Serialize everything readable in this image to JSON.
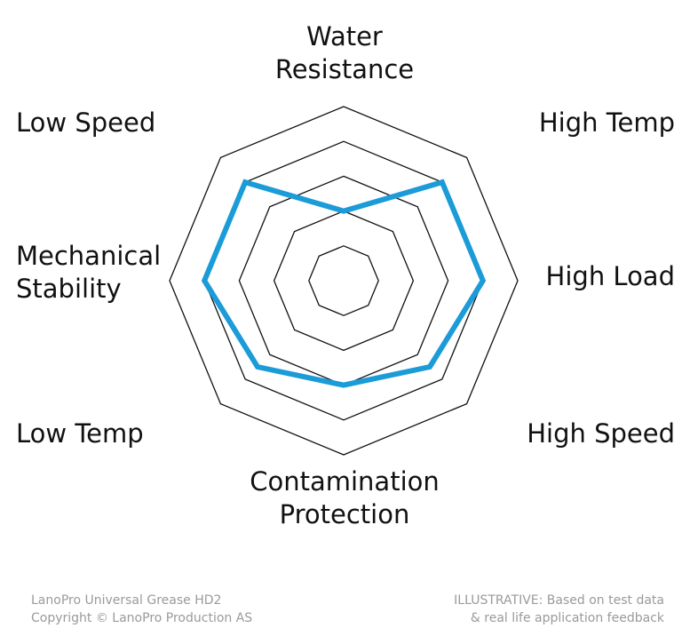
{
  "chart_data": {
    "type": "radar",
    "axes": [
      "Water\nResistance",
      "High Temp",
      "High Load",
      "High Speed",
      "Contamination\nProtection",
      "Low Temp",
      "Mechanical\nStability",
      "Low Speed"
    ],
    "series": [
      {
        "values": [
          2,
          4,
          4,
          3.5,
          3,
          3.5,
          4,
          4
        ],
        "color": "#1b9bd7"
      }
    ],
    "rmax": 5,
    "rings": [
      1,
      2,
      3,
      4,
      5
    ],
    "grid_color": "#111111"
  },
  "footer": {
    "left": "LanoPro Universal Grease HD2\nCopyright © LanoPro Production AS",
    "right": "ILLUSTRATIVE: Based on test data\n& real life application feedback"
  }
}
